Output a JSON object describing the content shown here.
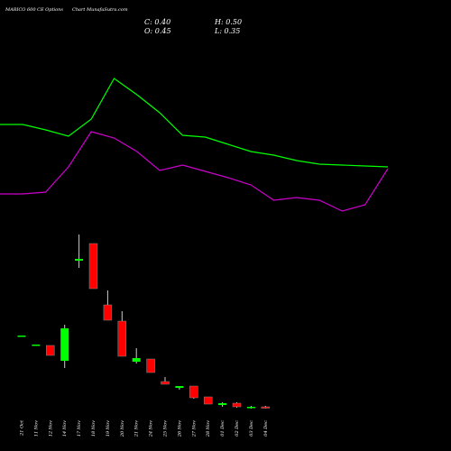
{
  "chart_data": {
    "type": "candlestick",
    "title": "MARICO 600 CE Options",
    "subtitle": "Chart MunafaSutra.com",
    "stats": [
      "C: 0.40",
      "H: 0.50",
      "O: 0.45",
      "L: 0.35"
    ],
    "categories": [
      "21 Oct",
      "11 Nov",
      "12 Nov",
      "14 Nov",
      "17 Nov",
      "18 Nov",
      "19 Nov",
      "20 Nov",
      "21 Nov",
      "24 Nov",
      "25 Nov",
      "26 Nov",
      "27 Nov",
      "28 Nov",
      "01 Dec",
      "02 Dec",
      "03 Dec",
      "04 Dec"
    ],
    "open": [
      4.35,
      3.9,
      3.85,
      3.0,
      8.55,
      9.5,
      6.1,
      5.2,
      2.95,
      3.1,
      1.85,
      1.5,
      1.6,
      1.0,
      0.55,
      0.65,
      0.4,
      0.45
    ],
    "high": [
      4.4,
      3.9,
      3.85,
      5.0,
      10.0,
      9.5,
      6.9,
      5.75,
      3.7,
      3.1,
      2.1,
      1.6,
      1.6,
      1.0,
      0.7,
      0.7,
      0.5,
      0.5
    ],
    "low": [
      4.35,
      3.9,
      3.3,
      2.6,
      8.15,
      7.0,
      5.25,
      3.25,
      2.85,
      2.35,
      1.7,
      1.4,
      0.9,
      0.6,
      0.45,
      0.4,
      0.35,
      0.35
    ],
    "close": [
      4.4,
      3.9,
      3.3,
      4.8,
      8.65,
      7.0,
      5.25,
      3.25,
      3.15,
      2.35,
      1.7,
      1.6,
      0.95,
      0.6,
      0.65,
      0.45,
      0.45,
      0.4
    ],
    "up_color": "#00ff00",
    "down_color": "#ff0000",
    "lines": [
      {
        "color": "#00ff00",
        "values": [
          16.1,
          16.1,
          15.8,
          15.45,
          16.4,
          18.65,
          17.75,
          16.75,
          15.5,
          15.4,
          15.0,
          14.6,
          14.4,
          14.1,
          13.9,
          13.85,
          13.8,
          13.75
        ]
      },
      {
        "color": "#cc00cc",
        "values": [
          12.25,
          12.25,
          12.35,
          13.75,
          15.7,
          15.35,
          14.6,
          13.55,
          13.85,
          13.5,
          13.15,
          12.75,
          11.9,
          12.05,
          11.9,
          11.3,
          11.65,
          13.65
        ]
      }
    ],
    "ylim": [
      0,
      23
    ]
  }
}
